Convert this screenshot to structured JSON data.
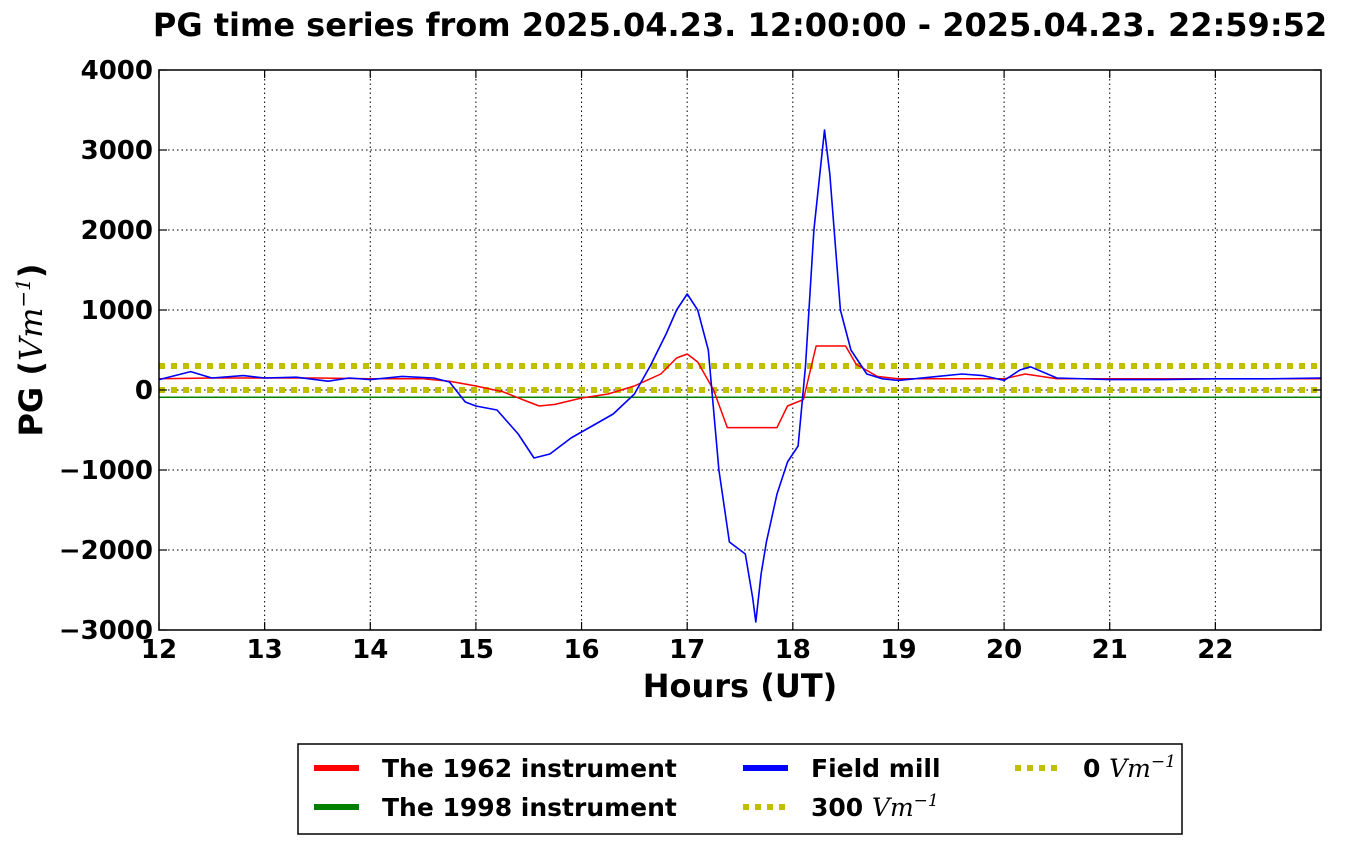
{
  "chart_data": {
    "type": "line",
    "title": "PG time series from 2025.04.23. 12:00:00 - 2025.04.23. 22:59:52",
    "xlabel": "Hours (UT)",
    "ylabel_prefix": "PG (",
    "ylabel_unit": "Vm",
    "ylabel_exp": "−1",
    "ylabel_suffix": ")",
    "xlim": [
      12,
      23
    ],
    "ylim": [
      -3000,
      4000
    ],
    "grid": true,
    "x_ticks": [
      12,
      13,
      14,
      15,
      16,
      17,
      18,
      19,
      20,
      21,
      22
    ],
    "x_tick_labels": [
      "12",
      "13",
      "14",
      "15",
      "16",
      "17",
      "18",
      "19",
      "20",
      "21",
      "22"
    ],
    "y_ticks": [
      -3000,
      -2000,
      -1000,
      0,
      1000,
      2000,
      3000,
      4000
    ],
    "y_tick_labels": [
      "−3000",
      "−2000",
      "−1000",
      "0",
      "1000",
      "2000",
      "3000",
      "4000"
    ],
    "legend_position": "bottom-center",
    "series": [
      {
        "name": "The 1962 instrument",
        "color": "#ff0000",
        "style": "solid",
        "x": [
          12.0,
          12.5,
          13.0,
          13.5,
          14.0,
          14.5,
          14.75,
          15.0,
          15.25,
          15.5,
          15.6,
          15.75,
          16.0,
          16.25,
          16.5,
          16.75,
          16.9,
          17.0,
          17.1,
          17.25,
          17.38,
          17.85,
          17.95,
          18.1,
          18.22,
          18.5,
          18.6,
          18.8,
          19.0,
          19.5,
          20.0,
          20.2,
          20.5,
          21.0,
          21.5,
          22.0,
          22.5,
          23.0
        ],
        "y": [
          140,
          150,
          150,
          150,
          140,
          140,
          110,
          50,
          -20,
          -150,
          -200,
          -180,
          -100,
          -50,
          50,
          200,
          400,
          450,
          350,
          0,
          -470,
          -470,
          -200,
          -120,
          550,
          550,
          320,
          170,
          140,
          140,
          140,
          200,
          140,
          140,
          140,
          140,
          140,
          140
        ]
      },
      {
        "name": "The 1998 instrument",
        "color": "#008000",
        "style": "solid",
        "x": [
          12,
          23
        ],
        "y": [
          -90,
          -90
        ]
      },
      {
        "name": "Field mill",
        "color": "#0000ff",
        "style": "solid",
        "x": [
          12.0,
          12.3,
          12.5,
          12.8,
          13.0,
          13.3,
          13.6,
          13.8,
          14.0,
          14.3,
          14.6,
          14.75,
          14.9,
          15.0,
          15.2,
          15.4,
          15.55,
          15.7,
          15.9,
          16.1,
          16.3,
          16.5,
          16.65,
          16.8,
          16.9,
          17.0,
          17.1,
          17.2,
          17.3,
          17.4,
          17.55,
          17.62,
          17.65,
          17.7,
          17.75,
          17.85,
          17.95,
          18.05,
          18.12,
          18.2,
          18.3,
          18.35,
          18.45,
          18.55,
          18.7,
          18.85,
          19.0,
          19.3,
          19.6,
          19.8,
          20.0,
          20.15,
          20.25,
          20.5,
          21.0,
          21.5,
          22.0,
          22.5,
          23.0
        ],
        "y": [
          130,
          230,
          150,
          180,
          150,
          160,
          110,
          150,
          130,
          170,
          150,
          100,
          -150,
          -200,
          -250,
          -550,
          -850,
          -800,
          -600,
          -450,
          -300,
          -50,
          300,
          700,
          1000,
          1200,
          1000,
          500,
          -1000,
          -1900,
          -2050,
          -2600,
          -2900,
          -2300,
          -1900,
          -1300,
          -900,
          -700,
          300,
          2000,
          3250,
          2700,
          1000,
          500,
          200,
          140,
          120,
          160,
          200,
          180,
          120,
          250,
          290,
          150,
          130,
          130,
          140,
          140,
          150
        ]
      },
      {
        "name": "300 ",
        "name_unit": "Vm",
        "name_exp": "−1",
        "color": "#bfbf00",
        "style": "dotted",
        "x": [
          12,
          23
        ],
        "y": [
          300,
          300
        ]
      },
      {
        "name": "0 ",
        "name_unit": "Vm",
        "name_exp": "−1",
        "color": "#bfbf00",
        "style": "dotted",
        "x": [
          12,
          23
        ],
        "y": [
          0,
          0
        ]
      }
    ]
  }
}
